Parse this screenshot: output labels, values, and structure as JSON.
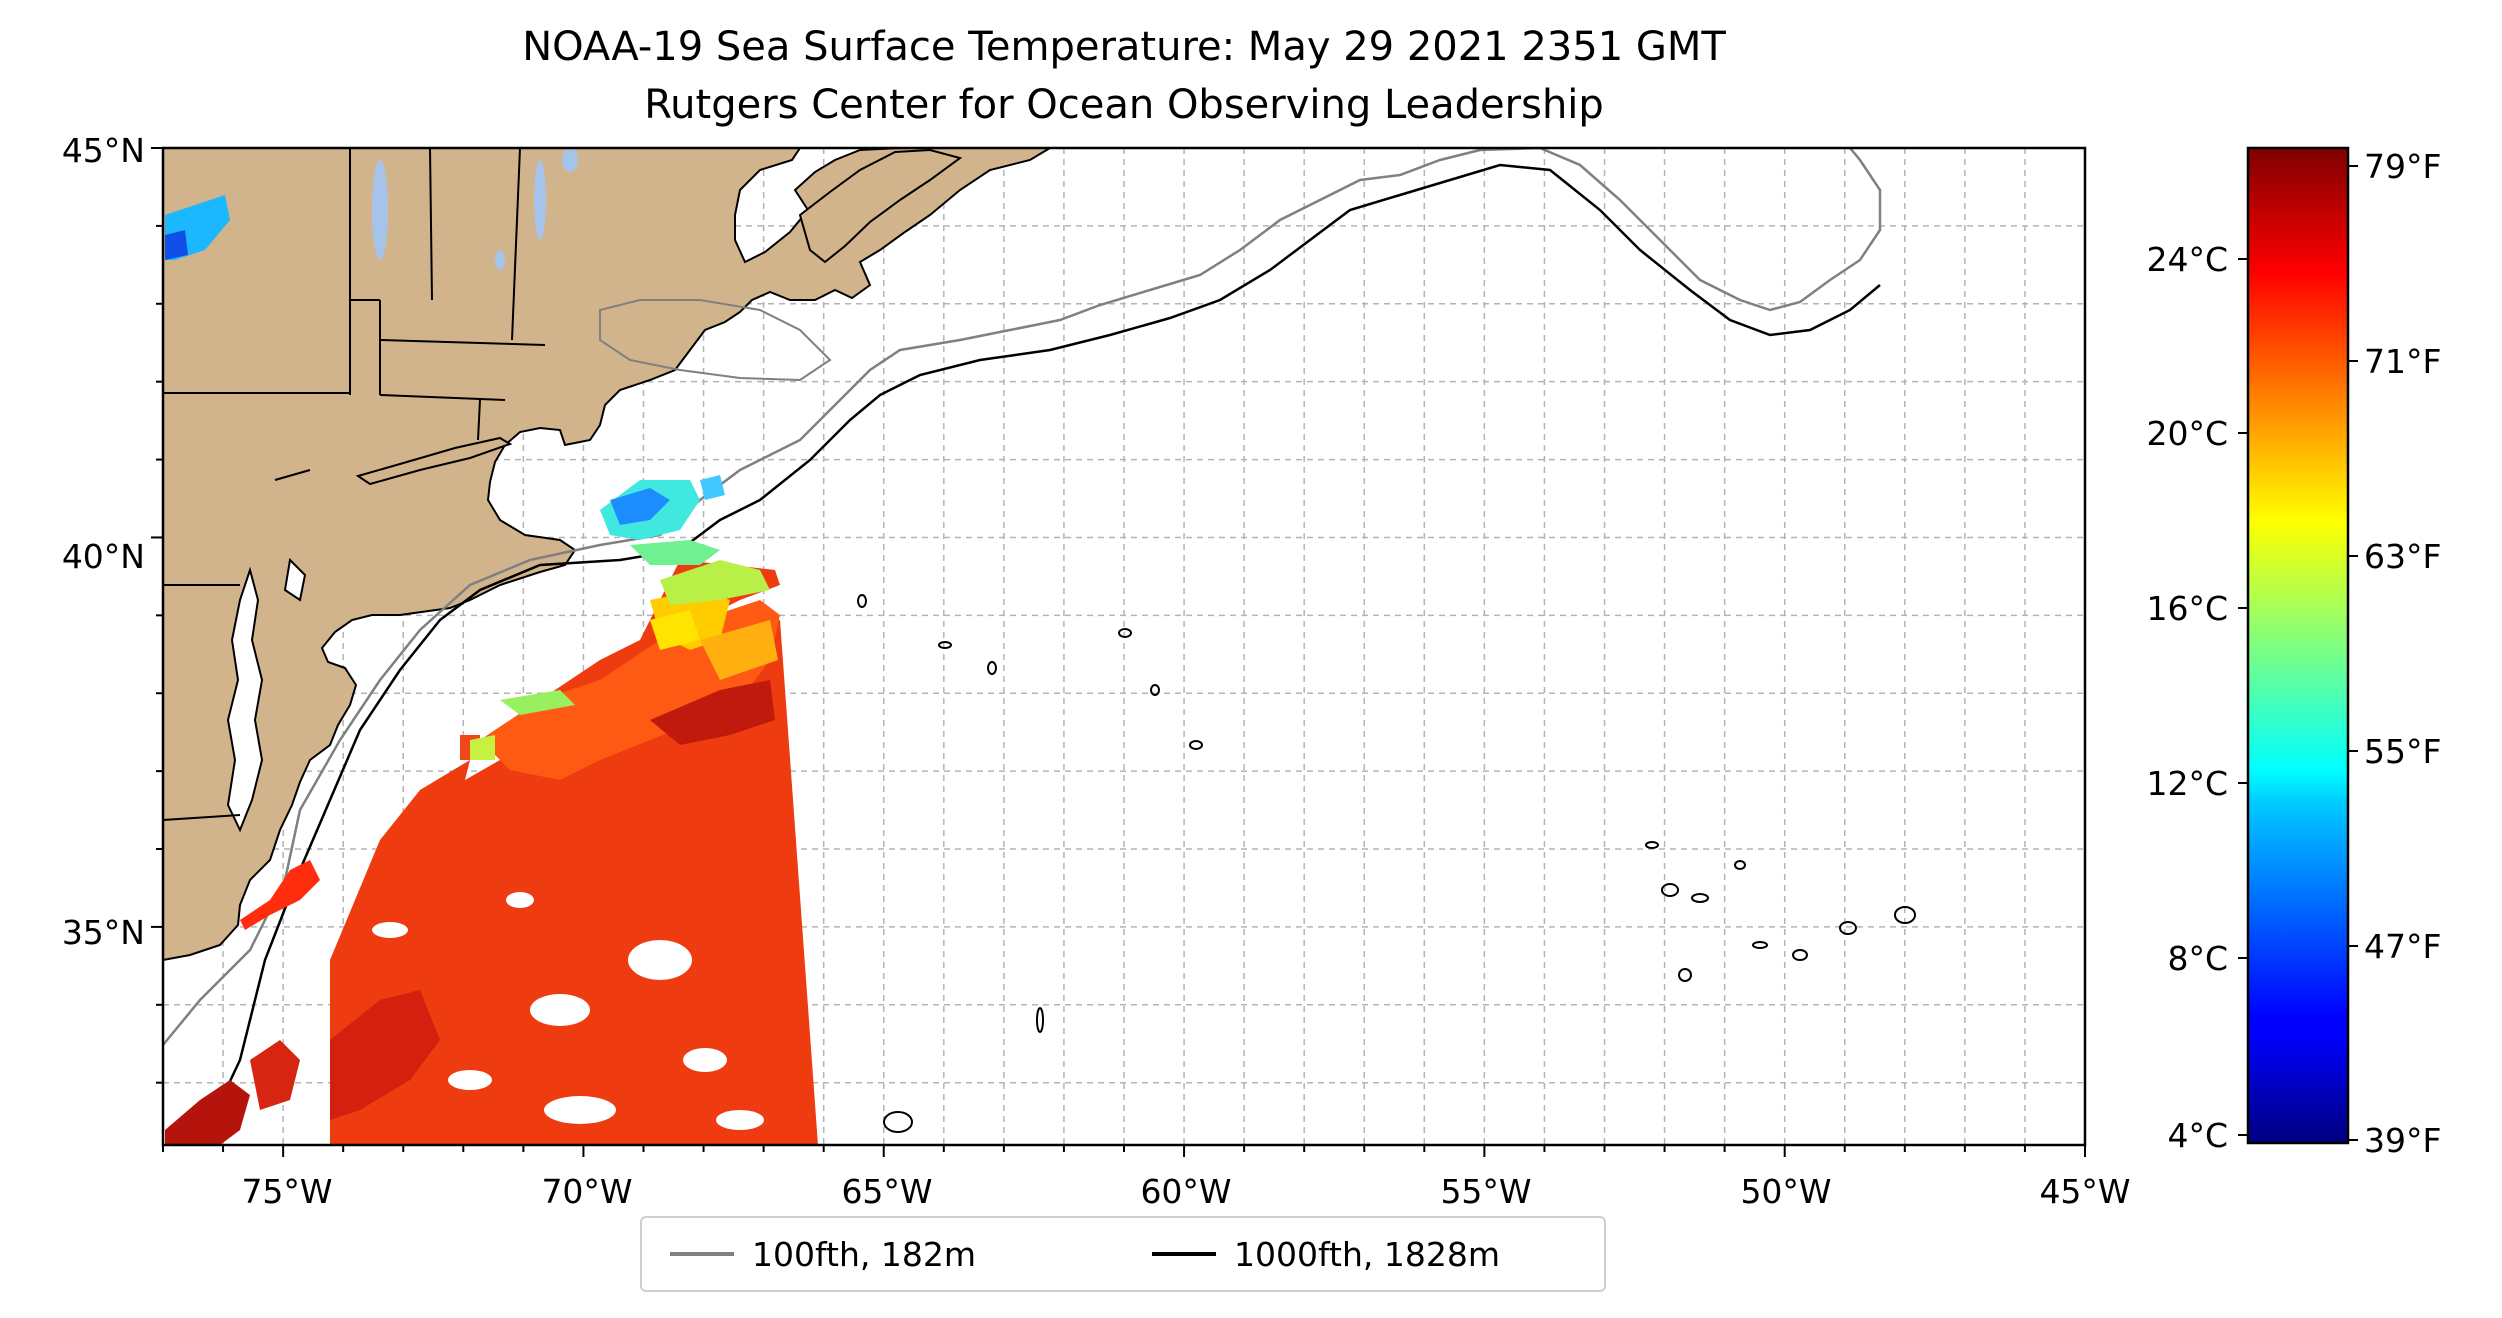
{
  "title_line1": "NOAA-19 Sea Surface Temperature: May 29 2021 2351 GMT",
  "title_line2": "Rutgers Center for Ocean Observing Leadership",
  "map": {
    "lon_range": [
      -77,
      -45
    ],
    "lat_range": [
      32.2,
      45
    ],
    "lon_ticks": [
      "75°W",
      "70°W",
      "65°W",
      "60°W",
      "55°W",
      "50°W",
      "45°W"
    ],
    "lat_ticks": [
      "35°N",
      "40°N",
      "45°N"
    ],
    "gridlines": true,
    "land_color": "#d2b48c",
    "lake_color": "#a6c4ea"
  },
  "legend": {
    "items": [
      {
        "label": "100fth, 182m",
        "color": "#808080"
      },
      {
        "label": "1000fth, 1828m",
        "color": "#000000"
      }
    ]
  },
  "colorbar": {
    "colormap": "jet",
    "celsius_labels": [
      "24°C",
      "20°C",
      "16°C",
      "12°C",
      "8°C",
      "4°C"
    ],
    "fahrenheit_labels": [
      "79°F",
      "71°F",
      "63°F",
      "55°F",
      "47°F",
      "39°F"
    ]
  }
}
